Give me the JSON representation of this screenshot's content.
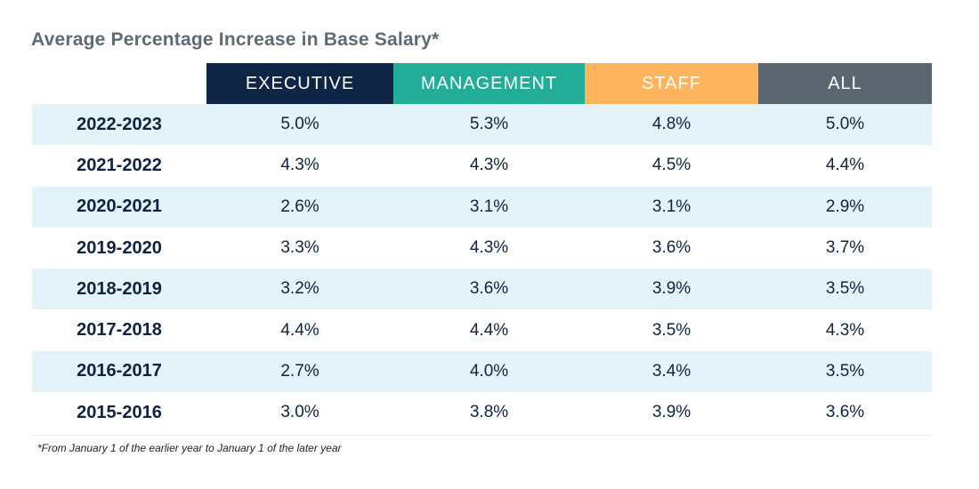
{
  "chart_data": {
    "type": "table",
    "title": "Average Percentage Increase in Base Salary*",
    "columns": [
      "EXECUTIVE",
      "MANAGEMENT",
      "STAFF",
      "ALL"
    ],
    "column_colors": [
      "#0e2545",
      "#22ad99",
      "#fdb45d",
      "#5c6670"
    ],
    "rows": [
      {
        "label": "2022-2023",
        "values": [
          "5.0%",
          "5.3%",
          "4.8%",
          "5.0%"
        ]
      },
      {
        "label": "2021-2022",
        "values": [
          "4.3%",
          "4.3%",
          "4.5%",
          "4.4%"
        ]
      },
      {
        "label": "2020-2021",
        "values": [
          "2.6%",
          "3.1%",
          "3.1%",
          "2.9%"
        ]
      },
      {
        "label": "2019-2020",
        "values": [
          "3.3%",
          "4.3%",
          "3.6%",
          "3.7%"
        ]
      },
      {
        "label": "2018-2019",
        "values": [
          "3.2%",
          "3.6%",
          "3.9%",
          "3.5%"
        ]
      },
      {
        "label": "2017-2018",
        "values": [
          "4.4%",
          "4.4%",
          "3.5%",
          "4.3%"
        ]
      },
      {
        "label": "2016-2017",
        "values": [
          "2.7%",
          "4.0%",
          "3.4%",
          "3.5%"
        ]
      },
      {
        "label": "2015-2016",
        "values": [
          "3.0%",
          "3.8%",
          "3.9%",
          "3.6%"
        ]
      }
    ],
    "shaded_row_color": "#e3f3f9",
    "footnote": "*From January 1 of the earlier year to January 1 of the later year"
  }
}
